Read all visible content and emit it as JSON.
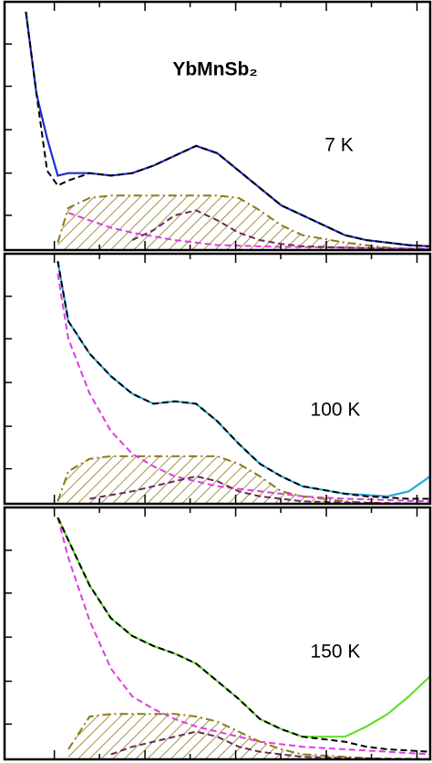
{
  "chart_data": [
    {
      "type": "line",
      "title": "YbMnSb₂",
      "annotation": "7 K",
      "x": [
        5,
        7.5,
        10,
        12.5,
        15,
        20,
        25,
        30,
        35,
        40,
        45,
        50,
        55,
        60,
        65,
        70,
        80,
        85,
        90,
        95,
        100
      ],
      "xlim": [
        0,
        100
      ],
      "ylim": [
        0,
        100
      ],
      "xticks": [
        11.7,
        22.3,
        33,
        43.6,
        54.3,
        64.9,
        75.6,
        86.2,
        96.9
      ],
      "yticks": [
        14,
        31,
        48.5,
        66,
        83
      ],
      "series": [
        {
          "color": "#8a7a1a",
          "style": "hatch",
          "values": [
            null,
            null,
            null,
            3,
            17,
            21,
            22,
            22,
            22,
            22,
            22,
            22,
            21,
            16,
            10,
            6,
            3,
            2,
            1,
            0.5,
            0
          ]
        },
        {
          "color": "#e03ce0",
          "style": "dashed",
          "values": [
            null,
            null,
            null,
            null,
            15,
            12,
            9,
            7,
            5.5,
            4,
            3,
            2,
            1.8,
            1.5,
            1.3,
            1.2,
            1,
            0.8,
            0.7,
            0.6,
            0.5
          ]
        },
        {
          "color": "#6a2a5a",
          "style": "dashed",
          "values": [
            null,
            null,
            null,
            null,
            null,
            null,
            null,
            4,
            8,
            14,
            16,
            12,
            7,
            4,
            2.5,
            1.5,
            1,
            0.8,
            0.6,
            0.5,
            0.4
          ]
        },
        {
          "color": "#1a2fd1",
          "style": "solid",
          "values": [
            96,
            63,
            45,
            30,
            31,
            31,
            30,
            31,
            34,
            38,
            42,
            39,
            32,
            25,
            18,
            14,
            6,
            4,
            3,
            2,
            1.5
          ]
        },
        {
          "color": "#000000",
          "style": "dashed",
          "values": [
            96,
            63,
            32,
            26,
            28,
            31,
            30,
            31,
            34,
            38,
            42,
            39,
            32,
            25,
            18,
            14,
            6,
            4,
            3,
            2,
            1.5
          ]
        }
      ]
    },
    {
      "type": "line",
      "annotation": "100 K",
      "x": [
        5,
        7.5,
        10,
        12.5,
        15,
        20,
        25,
        30,
        35,
        40,
        45,
        50,
        55,
        60,
        65,
        70,
        80,
        85,
        90,
        95,
        100
      ],
      "xlim": [
        0,
        100
      ],
      "ylim": [
        0,
        100
      ],
      "xticks": [
        11.7,
        22.3,
        33,
        43.6,
        54.3,
        64.9,
        75.6,
        86.2,
        96.9
      ],
      "yticks": [
        14,
        31,
        48.5,
        66,
        83
      ],
      "series": [
        {
          "color": "#8a7a1a",
          "style": "hatch",
          "values": [
            null,
            null,
            null,
            1,
            13,
            18,
            19,
            19,
            19,
            19,
            19,
            19,
            16,
            11,
            5,
            3,
            1,
            0.5,
            0,
            0,
            0
          ]
        },
        {
          "color": "#e03ce0",
          "style": "dashed",
          "values": [
            null,
            null,
            null,
            92,
            66,
            44,
            29,
            20,
            15,
            11,
            9,
            7,
            6,
            5,
            4,
            3,
            2,
            1.8,
            1.5,
            1.2,
            1
          ]
        },
        {
          "color": "#6a2a5a",
          "style": "dashed",
          "values": [
            null,
            null,
            null,
            null,
            null,
            2,
            3.5,
            5,
            7,
            9,
            11,
            9,
            5,
            3,
            2,
            1,
            0.5,
            0.4,
            0.3,
            0.2,
            0.1
          ]
        },
        {
          "color": "#29a8d8",
          "style": "solid",
          "values": [
            null,
            null,
            null,
            97,
            73,
            60,
            51,
            44,
            40,
            41,
            40,
            33,
            24,
            16,
            11,
            7,
            4,
            3.5,
            3,
            5,
            11
          ]
        },
        {
          "color": "#000000",
          "style": "dashed",
          "values": [
            null,
            null,
            null,
            97,
            73,
            60,
            51,
            44,
            40,
            41,
            40,
            33,
            24,
            16,
            11,
            7,
            4,
            3,
            2.5,
            2,
            2
          ]
        }
      ]
    },
    {
      "type": "line",
      "annotation": "150 K",
      "x": [
        5,
        7.5,
        10,
        12.5,
        15,
        20,
        25,
        30,
        35,
        40,
        45,
        50,
        55,
        60,
        65,
        70,
        80,
        85,
        90,
        95,
        100
      ],
      "xlim": [
        0,
        100
      ],
      "ylim": [
        0,
        100
      ],
      "xticks": [
        11.7,
        22.3,
        33,
        43.6,
        54.3,
        64.9,
        75.6,
        86.2,
        96.9
      ],
      "yticks": [
        14,
        31,
        48.5,
        66,
        83
      ],
      "series": [
        {
          "color": "#8a7a1a",
          "style": "hatch",
          "values": [
            null,
            null,
            null,
            null,
            4,
            17,
            18,
            18,
            18,
            18,
            17,
            15,
            11,
            7,
            4,
            2,
            1,
            0.5,
            0,
            0,
            0
          ]
        },
        {
          "color": "#e03ce0",
          "style": "dashed",
          "values": [
            null,
            null,
            null,
            96,
            80,
            55,
            36,
            25,
            20,
            16,
            13,
            11,
            9,
            7,
            6,
            5,
            4,
            3.5,
            3,
            2.5,
            2
          ]
        },
        {
          "color": "#6a2a5a",
          "style": "dashed",
          "values": [
            null,
            null,
            null,
            null,
            null,
            null,
            2,
            5,
            7,
            9,
            11,
            9,
            5,
            3,
            2,
            1,
            0.5,
            0.4,
            0.3,
            0.2,
            0.1
          ]
        },
        {
          "color": "#66dd33",
          "style": "solid",
          "values": [
            null,
            null,
            null,
            96,
            87,
            69,
            56,
            49,
            45,
            42,
            38,
            31,
            24,
            16,
            12,
            9,
            9,
            13,
            18,
            25,
            33
          ]
        },
        {
          "color": "#000000",
          "style": "dashed",
          "values": [
            null,
            null,
            null,
            96,
            87,
            69,
            56,
            49,
            45,
            42,
            38,
            31,
            24,
            16,
            12,
            9,
            7,
            5,
            4,
            3.5,
            3
          ]
        }
      ]
    }
  ]
}
